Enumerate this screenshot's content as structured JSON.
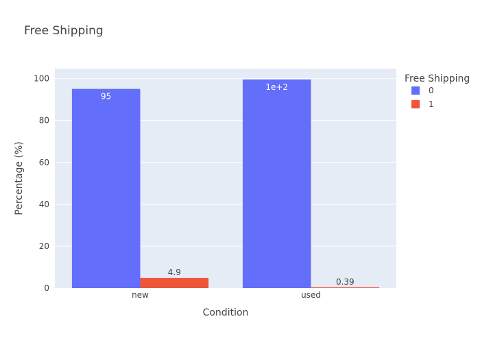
{
  "chart_data": {
    "type": "bar",
    "title": "Free Shipping",
    "xlabel": "Condition",
    "ylabel": "Percentage (%)",
    "categories": [
      "new",
      "used"
    ],
    "ylim": [
      0,
      104.8
    ],
    "yticks": [
      0,
      20,
      40,
      60,
      80,
      100
    ],
    "grid": true,
    "barmode": "group",
    "legend": {
      "title": "Free Shipping",
      "position": "top-right"
    },
    "series": [
      {
        "name": "0",
        "color": "#636efa",
        "values": [
          95.1,
          99.61
        ],
        "labels": [
          "95",
          "1e+2"
        ],
        "label_position": "inside"
      },
      {
        "name": "1",
        "color": "#ef553b",
        "values": [
          4.9,
          0.39
        ],
        "labels": [
          "4.9",
          "0.39"
        ],
        "label_position": "outside"
      }
    ]
  }
}
